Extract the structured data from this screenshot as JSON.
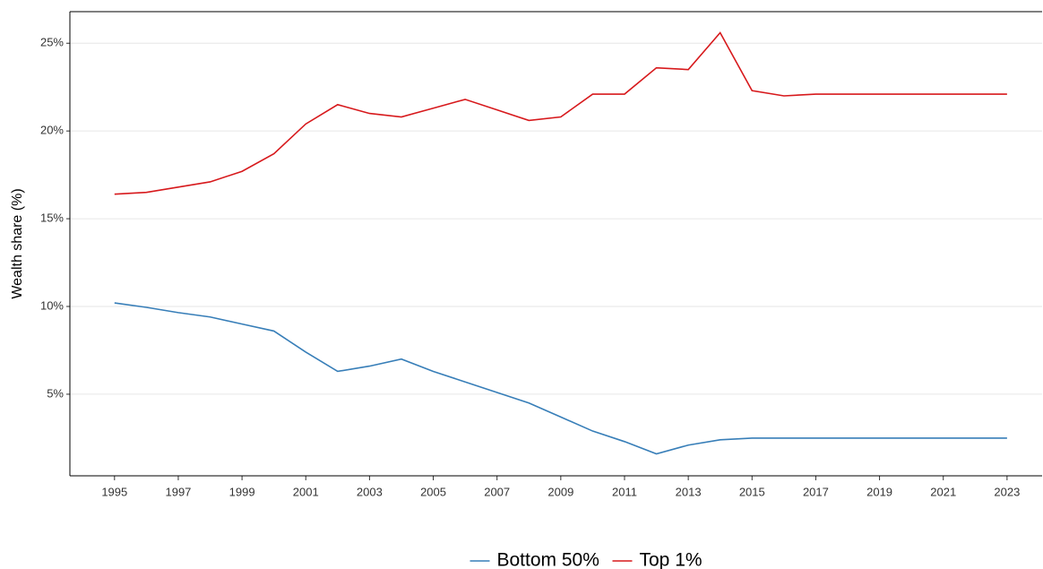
{
  "chart_data": {
    "type": "line",
    "y_label": "Wealth share (%)",
    "x": [
      1995,
      1996,
      1997,
      1998,
      1999,
      2000,
      2001,
      2002,
      2003,
      2004,
      2005,
      2006,
      2007,
      2008,
      2009,
      2010,
      2011,
      2012,
      2013,
      2014,
      2015,
      2016,
      2017,
      2018,
      2019,
      2020,
      2021,
      2022,
      2023
    ],
    "series": [
      {
        "name": "Bottom 50%",
        "color": "#377eb8",
        "values": [
          10.2,
          9.95,
          9.65,
          9.4,
          9.0,
          8.6,
          7.4,
          6.3,
          6.6,
          7.0,
          6.3,
          5.7,
          5.1,
          4.5,
          3.7,
          2.9,
          2.3,
          1.6,
          2.1,
          2.4,
          2.5,
          2.5,
          2.5,
          2.5,
          2.5,
          2.5,
          2.5,
          2.5,
          2.5
        ]
      },
      {
        "name": "Top 1%",
        "color": "#d7191c",
        "values": [
          16.4,
          16.5,
          16.8,
          17.1,
          17.7,
          18.7,
          20.4,
          21.5,
          21.0,
          20.8,
          21.3,
          21.8,
          21.2,
          20.6,
          20.8,
          22.1,
          22.1,
          23.6,
          23.5,
          25.6,
          22.3,
          22.0,
          22.1,
          22.1,
          22.1,
          22.1,
          22.1,
          22.1,
          22.1
        ]
      }
    ],
    "xlim": [
      1993.6,
      2024.1
    ],
    "xticks": [
      1995,
      1997,
      1999,
      2001,
      2003,
      2005,
      2007,
      2009,
      2011,
      2013,
      2015,
      2017,
      2019,
      2021,
      2023
    ],
    "ylim": [
      0.35,
      26.8
    ],
    "yticks": [
      {
        "value": 5,
        "label": "5%"
      },
      {
        "value": 10,
        "label": "10%"
      },
      {
        "value": 15,
        "label": "15%"
      },
      {
        "value": 20,
        "label": "20%"
      },
      {
        "value": 25,
        "label": "25%"
      }
    ],
    "grid": true,
    "legend": "bottom"
  }
}
